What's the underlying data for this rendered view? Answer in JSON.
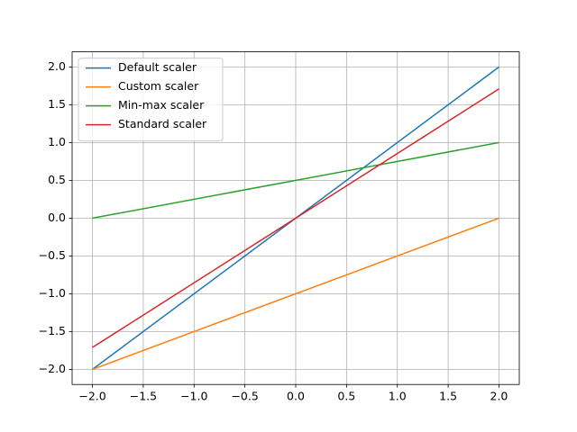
{
  "chart_data": {
    "type": "line",
    "x": [
      -2,
      2
    ],
    "series": [
      {
        "name": "Default scaler",
        "color": "#1f77b4",
        "values": [
          -2,
          2
        ]
      },
      {
        "name": "Custom scaler",
        "color": "#ff7f0e",
        "values": [
          -2,
          0
        ]
      },
      {
        "name": "Min-max scaler",
        "color": "#2ca02c",
        "values": [
          0,
          1
        ]
      },
      {
        "name": "Standard scaler",
        "color": "#d62728",
        "values": [
          -1.71,
          1.71
        ]
      }
    ],
    "xlim": [
      -2.2,
      2.2
    ],
    "ylim": [
      -2.2,
      2.2
    ],
    "xticks": [
      {
        "value": -2,
        "label": "−2.0"
      },
      {
        "value": -1.5,
        "label": "−1.5"
      },
      {
        "value": -1,
        "label": "−1.0"
      },
      {
        "value": -0.5,
        "label": "−0.5"
      },
      {
        "value": 0,
        "label": "0.0"
      },
      0.5,
      {
        "value": 1,
        "label": "1.0"
      },
      1.5,
      {
        "value": 2,
        "label": "2.0"
      }
    ],
    "yticks": [
      {
        "value": -2,
        "label": "−2.0"
      },
      {
        "value": -1.5,
        "label": "−1.5"
      },
      {
        "value": -1,
        "label": "−1.0"
      },
      {
        "value": -0.5,
        "label": "−0.5"
      },
      {
        "value": 0,
        "label": "0.0"
      },
      0.5,
      {
        "value": 1,
        "label": "1.0"
      },
      1.5,
      {
        "value": 2,
        "label": "2.0"
      }
    ],
    "grid": true,
    "legend": "upper left"
  }
}
